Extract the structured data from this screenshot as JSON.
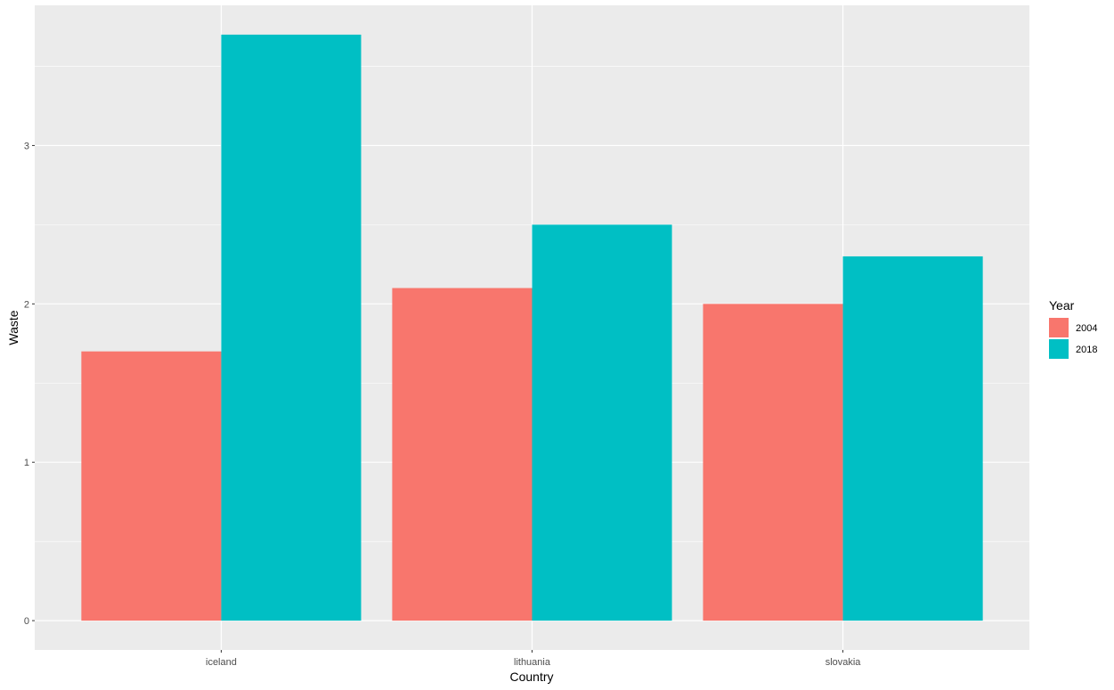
{
  "chart_data": {
    "type": "bar",
    "xlabel": "Country",
    "ylabel": "Waste",
    "categories": [
      "iceland",
      "lithuania",
      "slovakia"
    ],
    "series": [
      {
        "name": "2004",
        "color": "#F8766D",
        "values": [
          1.7,
          2.1,
          2.0
        ]
      },
      {
        "name": "2018",
        "color": "#00BFC4",
        "values": [
          3.7,
          2.5,
          2.3
        ]
      }
    ],
    "ylim": [
      -0.185,
      3.885
    ],
    "yticks": [
      0,
      1,
      2,
      3
    ],
    "legend": {
      "title": "Year",
      "position": "right"
    },
    "grid": true,
    "panel_background": "#EBEBEB",
    "grid_color": "#FFFFFF"
  }
}
